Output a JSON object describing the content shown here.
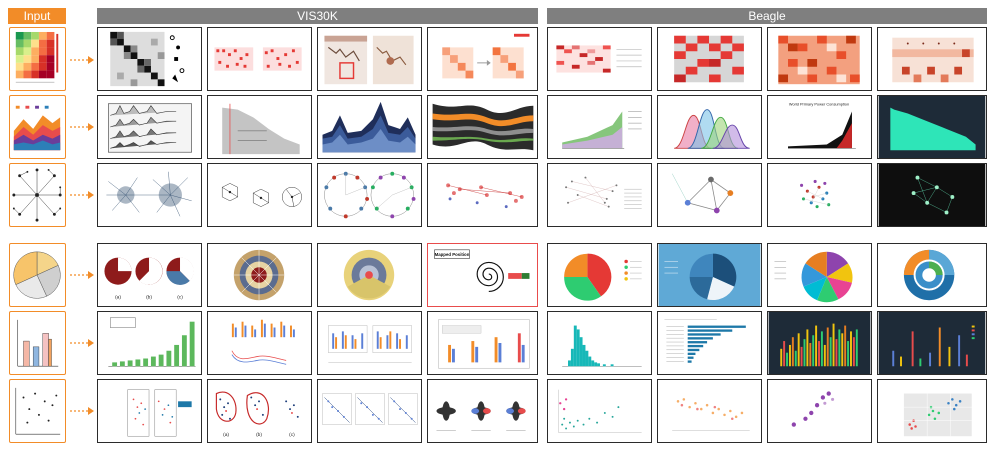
{
  "headers": {
    "input": "Input",
    "vis30k": "VIS30K",
    "beagle": "Beagle"
  },
  "colors": {
    "input_orange": "#f28c28",
    "header_gray": "#7f7f7f",
    "cell_border": "#2b2b2b",
    "highlight_red": "#e84c4c"
  },
  "rows": [
    {
      "kind": "heatmap",
      "icon": "heatmap-thumbnail"
    },
    {
      "kind": "area",
      "icon": "area-chart-thumbnail"
    },
    {
      "kind": "network",
      "icon": "network-graph-thumbnail"
    },
    {
      "kind": "pie",
      "icon": "pie-chart-thumbnail"
    },
    {
      "kind": "bar",
      "icon": "bar-chart-thumbnail"
    },
    {
      "kind": "scatter",
      "icon": "scatter-plot-thumbnail"
    }
  ],
  "thumb_text": {
    "r4_v1_a": "(a)",
    "r4_v1_b": "(b)",
    "r4_v1_c": "(c)",
    "r4_v4_title": "Mapped Position",
    "r6_v2_a": "(a)",
    "r6_v2_b": "(b)",
    "r6_v2_c": "(c)",
    "r2_b3_title": "World Primary Power Consumption"
  }
}
